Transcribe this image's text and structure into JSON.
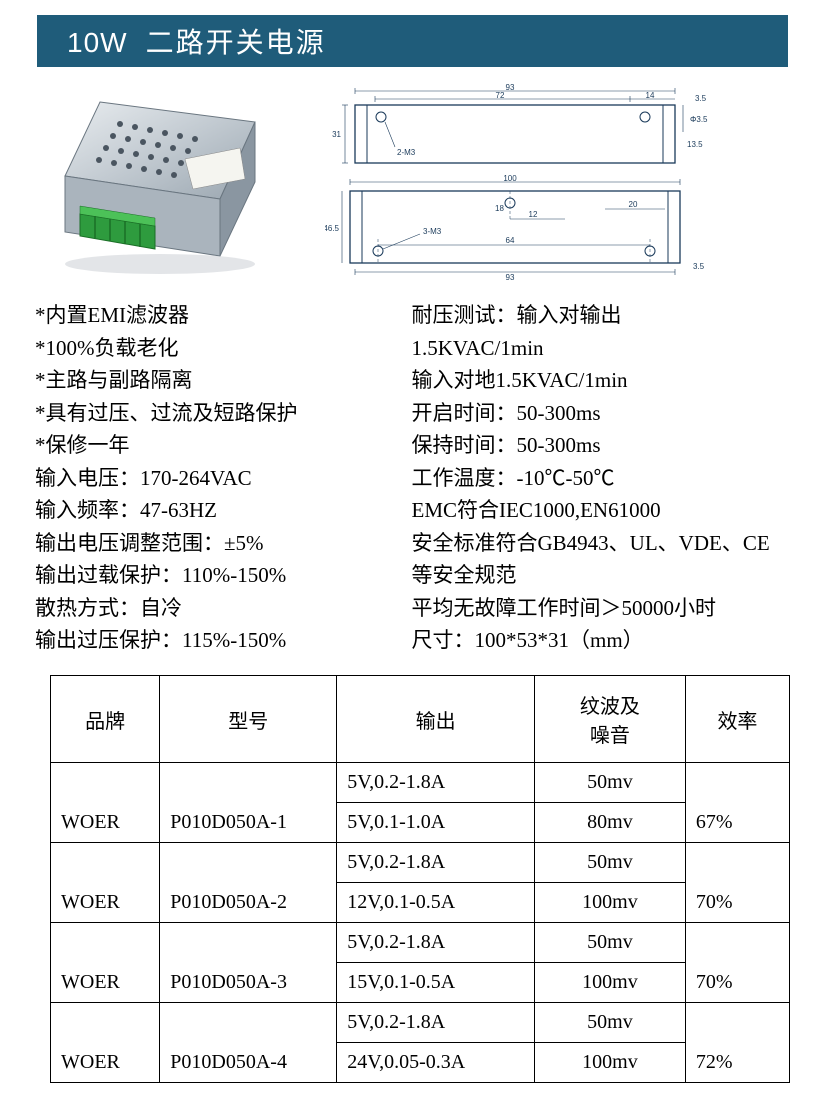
{
  "title": {
    "wattage": "10W",
    "desc": "二路开关电源"
  },
  "colors": {
    "title_bg": "#1f5c7a",
    "title_text": "#ffffff",
    "page_bg": "#ffffff",
    "text": "#000000",
    "border": "#000000"
  },
  "specs_left": [
    "*内置EMI滤波器",
    "*100%负载老化",
    "*主路与副路隔离",
    "*具有过压、过流及短路保护",
    "*保修一年",
    "输入电压：170-264VAC",
    "输入频率：47-63HZ",
    "输出电压调整范围：±5%",
    "输出过载保护：110%-150%",
    "散热方式：自冷",
    "输出过压保护：115%-150%"
  ],
  "specs_right": [
    "耐压测试：输入对输出",
    "1.5KVAC/1min",
    "输入对地1.5KVAC/1min",
    "开启时间：50-300ms",
    "保持时间：50-300ms",
    "工作温度：-10℃-50℃",
    "EMC符合IEC1000,EN61000",
    "安全标准符合GB4943、UL、VDE、CE",
    "等安全规范",
    "平均无故障工作时间＞50000小时",
    "尺寸：100*53*31（mm）"
  ],
  "table": {
    "columns": [
      "品牌",
      "型号",
      "输出",
      "纹波及噪音",
      "效率"
    ],
    "col_widths": [
      "105px",
      "170px",
      "190px",
      "145px",
      "100px"
    ],
    "rows": [
      {
        "brand": "WOER",
        "model": "P010D050A-1",
        "outputs": [
          "5V,0.2-1.8A",
          "5V,0.1-1.0A"
        ],
        "ripple": [
          "50mv",
          "80mv"
        ],
        "eff": "67%"
      },
      {
        "brand": "WOER",
        "model": "P010D050A-2",
        "outputs": [
          "5V,0.2-1.8A",
          "12V,0.1-0.5A"
        ],
        "ripple": [
          "50mv",
          "100mv"
        ],
        "eff": "70%"
      },
      {
        "brand": "WOER",
        "model": "P010D050A-3",
        "outputs": [
          "5V,0.2-1.8A",
          "15V,0.1-0.5A"
        ],
        "ripple": [
          "50mv",
          "100mv"
        ],
        "eff": "70%"
      },
      {
        "brand": "WOER",
        "model": "P010D050A-4",
        "outputs": [
          "5V,0.2-1.8A",
          "24V,0.05-0.3A"
        ],
        "ripple": [
          "50mv",
          "100mv"
        ],
        "eff": "72%"
      }
    ]
  },
  "drawing": {
    "top": {
      "outer_w": "93",
      "inner_w": "72",
      "right_gap": "14",
      "thick": "3.5",
      "height": "31",
      "hole_label": "2-M3",
      "hole_dia": "Φ3.5",
      "side": "13.5"
    },
    "bottom": {
      "outer_w": "100",
      "screw_span": "64",
      "inner_dim": "12",
      "mid": "18",
      "right_seg": "20",
      "height": "46.5",
      "outer_w2": "93",
      "thick": "3.5",
      "hole_label": "3-M3"
    }
  }
}
